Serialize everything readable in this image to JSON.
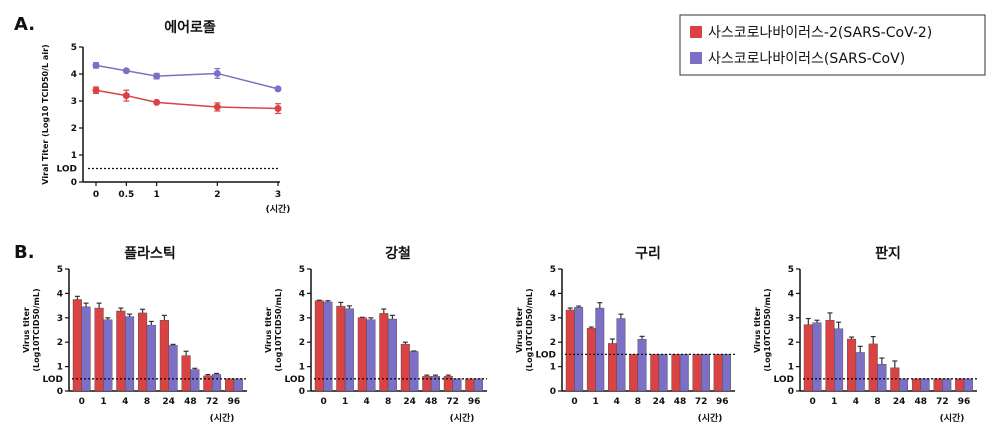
{
  "colors": {
    "sars_cov_2": "#d94343",
    "sars_cov": "#7b70c6"
  },
  "legend": [
    {
      "label": "사스코로나바이러스-2(SARS-CoV-2)",
      "color": "#d94343"
    },
    {
      "label": "사스코로나바이러스(SARS-CoV)",
      "color": "#7b70c6"
    }
  ],
  "panel_labels": {
    "a": "A.",
    "b": "B."
  },
  "chart_data": [
    {
      "type": "line",
      "title": "에어로졸",
      "ylabel": "Viral Titer (Log10 TCID50/L air)",
      "xlabel": "(시간)",
      "x": [
        0,
        0.5,
        1,
        2,
        3
      ],
      "xticks": [
        "0",
        "0.5",
        "1",
        "2",
        "3"
      ],
      "yticks": [
        "0",
        "1",
        "2",
        "3",
        "4",
        "5"
      ],
      "ylim": [
        0,
        5
      ],
      "lod": 0.5,
      "lod_label": "LOD",
      "series": [
        {
          "name": "사스코로나바이러스-2(SARS-CoV-2)",
          "values": [
            3.4,
            3.2,
            2.95,
            2.78,
            2.72
          ],
          "errors": [
            0.12,
            0.2,
            0.03,
            0.15,
            0.18
          ]
        },
        {
          "name": "사스코로나바이러스(SARS-CoV)",
          "values": [
            4.32,
            4.12,
            3.92,
            4.02,
            3.45
          ],
          "errors": [
            0.1,
            0.05,
            0.1,
            0.18,
            0.03
          ]
        }
      ]
    },
    {
      "type": "bar",
      "title": "플라스틱",
      "ylabel": "Virus titer (Log10TCID50/mL)",
      "xlabel": "(시간)",
      "categories": [
        "0",
        "1",
        "4",
        "8",
        "24",
        "48",
        "72",
        "96"
      ],
      "yticks": [
        "0",
        "1",
        "2",
        "3",
        "4",
        "5"
      ],
      "ylim": [
        0,
        5
      ],
      "lod": 0.5,
      "lod_label": "LOD",
      "series": [
        {
          "name": "사스코로나바이러스-2(SARS-CoV-2)",
          "values": [
            3.75,
            3.4,
            3.28,
            3.2,
            2.9,
            1.45,
            0.62,
            0.5
          ],
          "errors": [
            0.13,
            0.2,
            0.12,
            0.15,
            0.2,
            0.18,
            0.05,
            0
          ]
        },
        {
          "name": "사스코로나바이러스(SARS-CoV)",
          "values": [
            3.45,
            2.92,
            3.05,
            2.7,
            1.87,
            0.88,
            0.68,
            0.5
          ],
          "errors": [
            0.15,
            0.08,
            0.1,
            0.15,
            0.04,
            0.05,
            0.04,
            0
          ]
        }
      ]
    },
    {
      "type": "bar",
      "title": "강철",
      "ylabel": "Virus titer (Log10TCID50/mL)",
      "xlabel": "(시간)",
      "categories": [
        "0",
        "1",
        "4",
        "8",
        "24",
        "48",
        "72",
        "96"
      ],
      "yticks": [
        "0",
        "1",
        "2",
        "3",
        "4",
        "5"
      ],
      "ylim": [
        0,
        5
      ],
      "lod": 0.5,
      "lod_label": "LOD",
      "series": [
        {
          "name": "사스코로나바이러스-2(SARS-CoV-2)",
          "values": [
            3.7,
            3.48,
            3.0,
            3.18,
            1.92,
            0.6,
            0.6,
            0.5
          ],
          "errors": [
            0.02,
            0.15,
            0.02,
            0.18,
            0.08,
            0.05,
            0.05,
            0
          ]
        },
        {
          "name": "사스코로나바이러스(SARS-CoV)",
          "values": [
            3.65,
            3.37,
            2.92,
            2.95,
            1.62,
            0.6,
            0.5,
            0.5
          ],
          "errors": [
            0.05,
            0.12,
            0.08,
            0.15,
            0.02,
            0.05,
            0,
            0
          ]
        }
      ]
    },
    {
      "type": "bar",
      "title": "구리",
      "ylabel": "Virus titer (Log10TCID50/mL)",
      "xlabel": "(시간)",
      "categories": [
        "0",
        "1",
        "4",
        "8",
        "24",
        "48",
        "72",
        "96"
      ],
      "yticks": [
        "0",
        "1",
        "2",
        "3",
        "4",
        "5"
      ],
      "ylim": [
        0,
        5
      ],
      "lod": 1.5,
      "lod_label": "LOD",
      "series": [
        {
          "name": "사스코로나바이러스-2(SARS-CoV-2)",
          "values": [
            3.32,
            2.57,
            1.95,
            1.5,
            1.5,
            1.5,
            1.5,
            1.5
          ],
          "errors": [
            0.08,
            0.05,
            0.18,
            0,
            0,
            0,
            0,
            0
          ]
        },
        {
          "name": "사스코로나바이러스(SARS-CoV)",
          "values": [
            3.43,
            3.4,
            2.97,
            2.12,
            1.5,
            1.5,
            1.5,
            1.5
          ],
          "errors": [
            0.05,
            0.22,
            0.18,
            0.12,
            0,
            0,
            0,
            0
          ]
        }
      ]
    },
    {
      "type": "bar",
      "title": "판지",
      "ylabel": "Virus titer (Log10TCID50/mL)",
      "xlabel": "(시간)",
      "categories": [
        "0",
        "1",
        "4",
        "8",
        "24",
        "48",
        "72",
        "96"
      ],
      "yticks": [
        "0",
        "1",
        "2",
        "3",
        "4",
        "5"
      ],
      "ylim": [
        0,
        5
      ],
      "lod": 0.5,
      "lod_label": "LOD",
      "series": [
        {
          "name": "사스코로나바이러스-2(SARS-CoV-2)",
          "values": [
            2.72,
            2.9,
            2.13,
            1.93,
            0.95,
            0.5,
            0.5,
            0.5
          ],
          "errors": [
            0.25,
            0.3,
            0.08,
            0.3,
            0.28,
            0,
            0,
            0
          ]
        },
        {
          "name": "사스코로나바이러스(SARS-CoV)",
          "values": [
            2.8,
            2.55,
            1.58,
            1.1,
            0.5,
            0.5,
            0.5,
            0.5
          ],
          "errors": [
            0.1,
            0.27,
            0.25,
            0.25,
            0,
            0,
            0,
            0
          ]
        }
      ]
    }
  ]
}
